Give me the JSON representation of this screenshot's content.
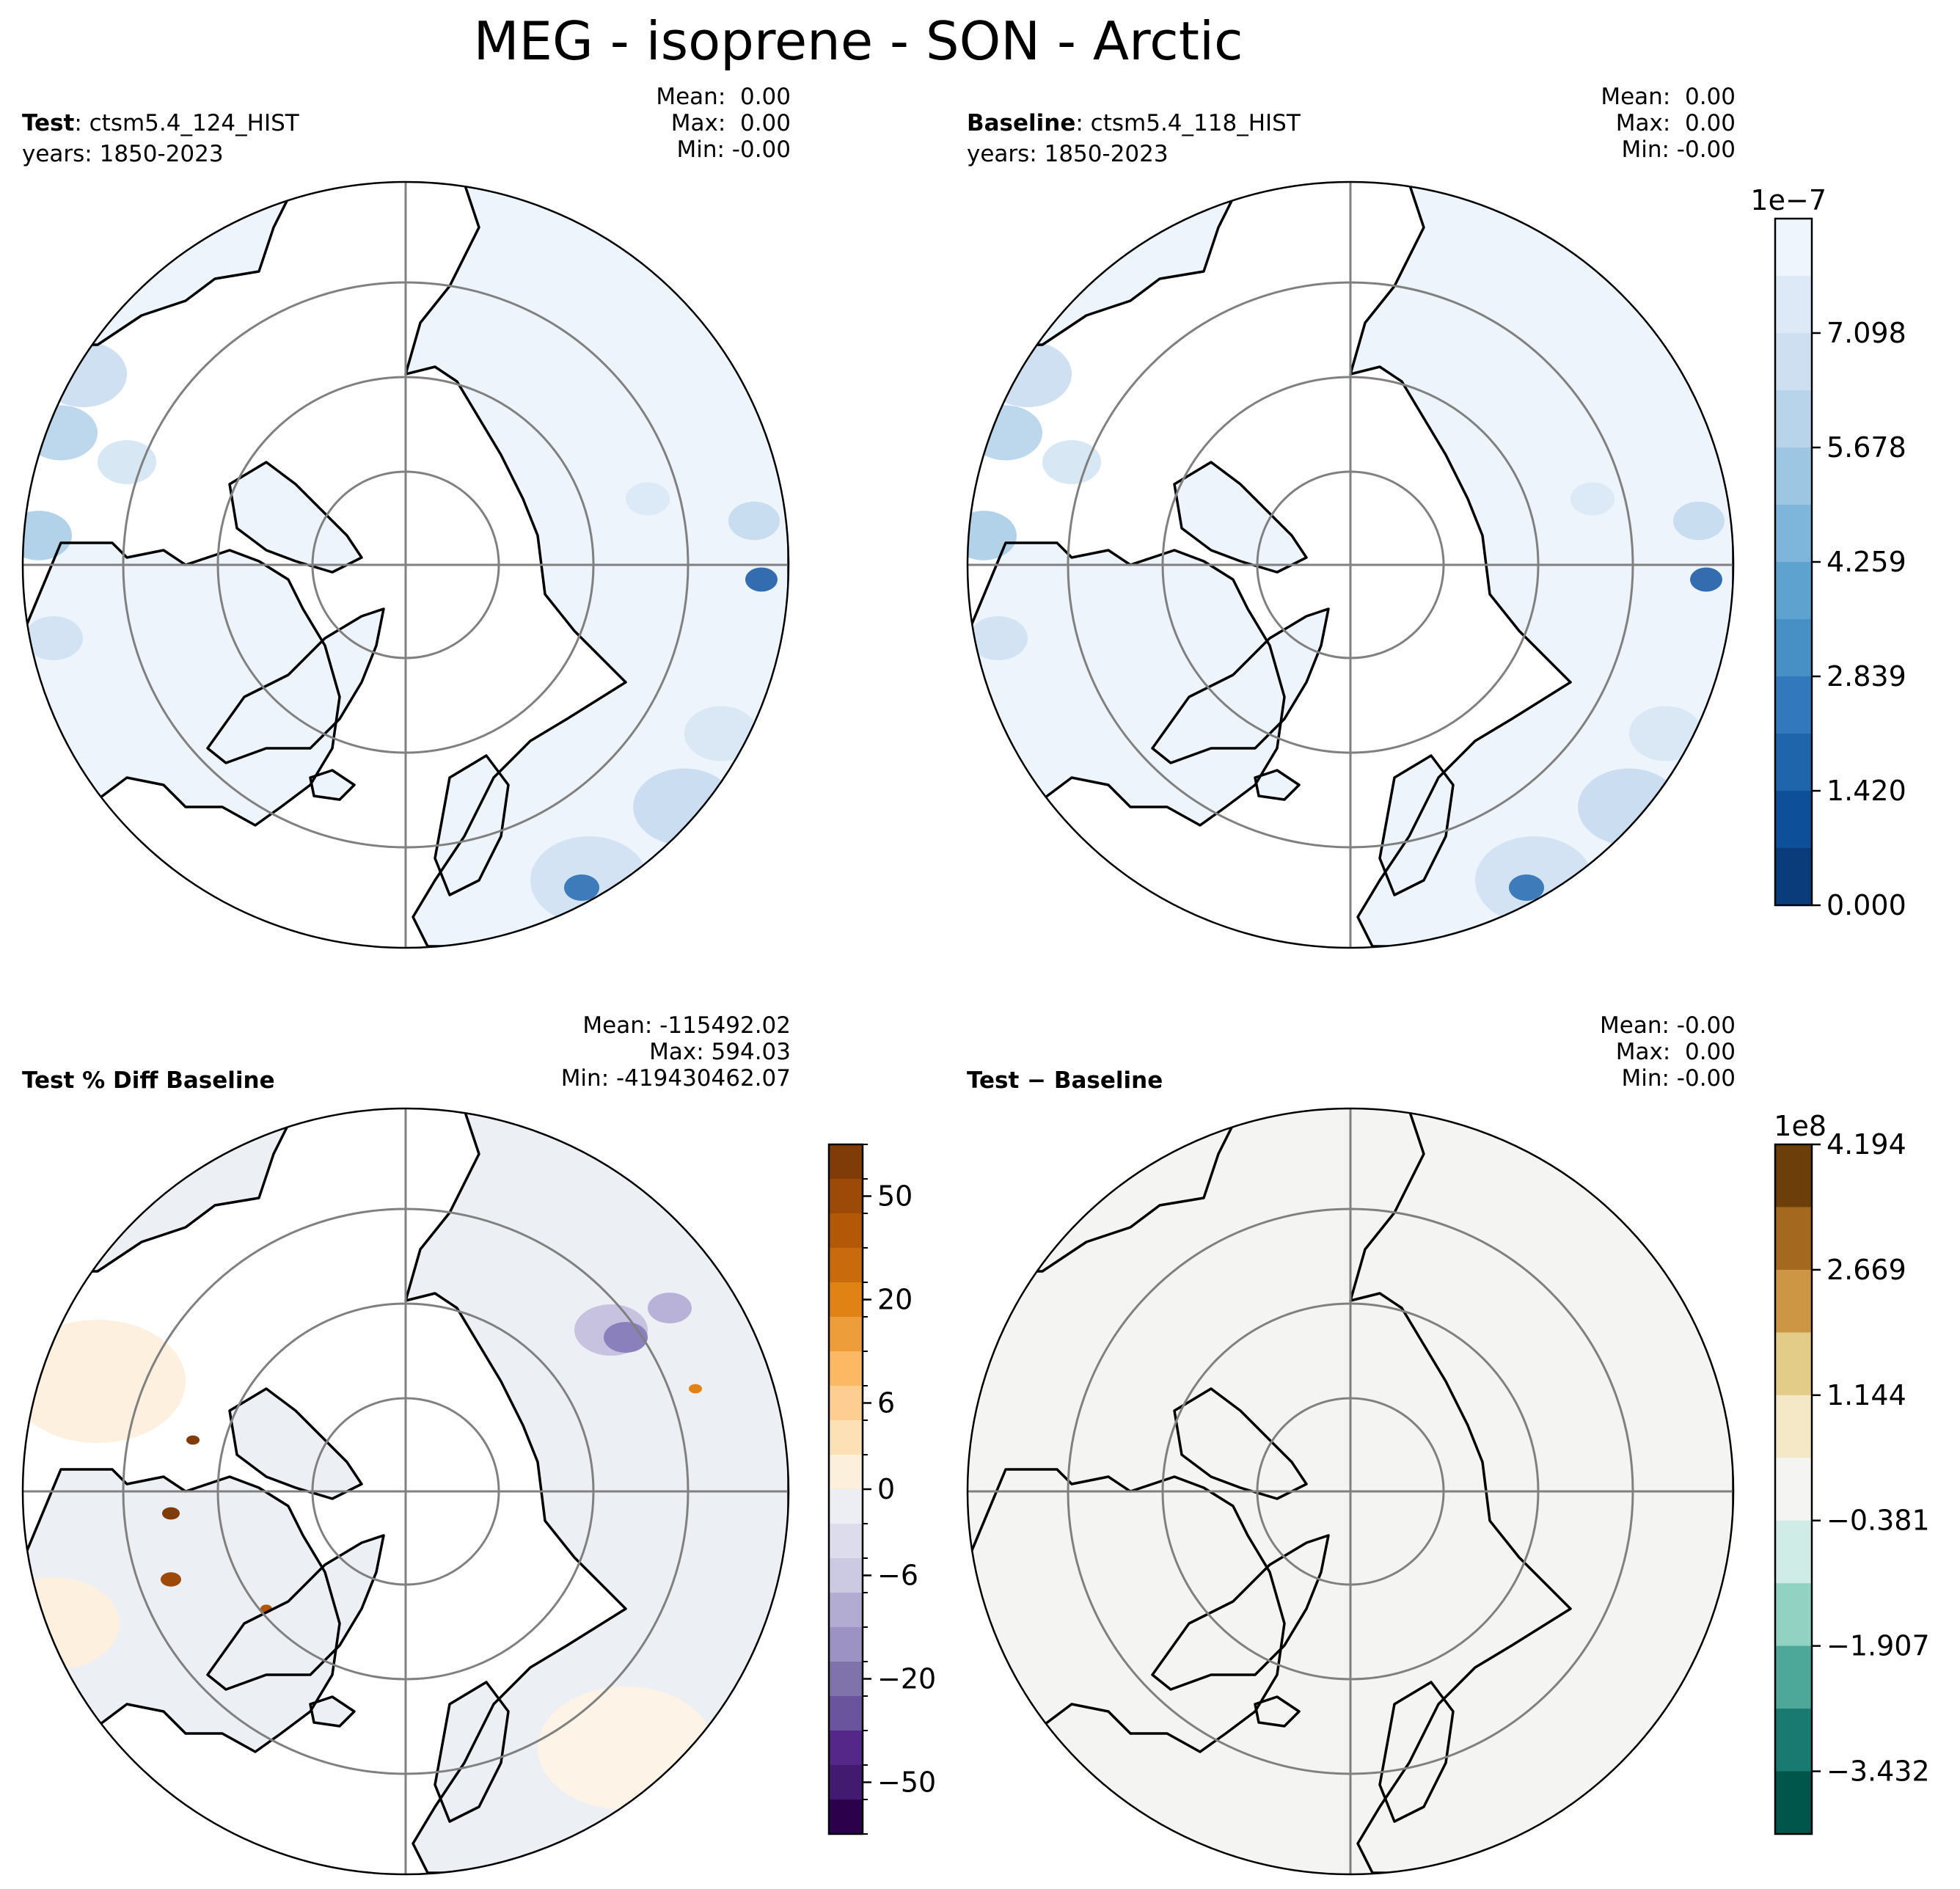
{
  "title": "MEG - isoprene - SON - Arctic",
  "panels": [
    {
      "id": "test",
      "label_bold": "Test",
      "label_rest": ": ctsm5.4_124_HIST",
      "years": "years: 1850-2023",
      "stats": {
        "mean": "Mean:  0.00",
        "max": "Max:  0.00",
        "min": "Min: -0.00"
      }
    },
    {
      "id": "baseline",
      "label_bold": "Baseline",
      "label_rest": ": ctsm5.4_118_HIST",
      "years": "years: 1850-2023",
      "stats": {
        "mean": "Mean:  0.00",
        "max": "Max:  0.00",
        "min": "Min: -0.00"
      }
    },
    {
      "id": "pctdiff",
      "label_bold": "Test % Diff Baseline",
      "label_rest": "",
      "years": "",
      "stats": {
        "mean": "Mean: -115492.02",
        "max": "Max: 594.03",
        "min": "Min: -419430462.07"
      }
    },
    {
      "id": "diff",
      "label_bold": "Test",
      "label_rest": " − Baseline",
      "years": "",
      "stats": {
        "mean": "Mean: -0.00",
        "max": "Max:  0.00",
        "min": "Min: -0.00"
      }
    }
  ],
  "colorbars": {
    "abs": {
      "exponent": "1e−7",
      "ticks": [
        "0.000",
        "1.420",
        "2.839",
        "4.259",
        "5.678",
        "7.098"
      ],
      "colors": [
        "#eef5fc",
        "#dde9f6",
        "#cddff1",
        "#b8d4ea",
        "#9cc6e2",
        "#7db6da",
        "#5ea2d0",
        "#4690c6",
        "#3179bc",
        "#1e65ac",
        "#0d5099",
        "#0a3b7a"
      ]
    },
    "pct": {
      "ticks": [
        "50",
        "20",
        "6",
        "0",
        "−6",
        "−20",
        "−50"
      ],
      "colors": [
        "#7f3b08",
        "#9d4a08",
        "#b35806",
        "#c96a0c",
        "#e08214",
        "#ed9d3a",
        "#fdb863",
        "#fdcd92",
        "#fee0b6",
        "#fcefdc",
        "#eceef4",
        "#dcdcec",
        "#ccc9e2",
        "#b2abd2",
        "#9c92c4",
        "#8073ac",
        "#6a549d",
        "#542788",
        "#421a70",
        "#2d004b"
      ]
    },
    "diff": {
      "exponent": "1e8",
      "ticks": [
        "4.194",
        "2.669",
        "1.144",
        "−0.381",
        "−1.907",
        "−3.432"
      ],
      "colors": [
        "#6b3e0a",
        "#a5681f",
        "#cc9644",
        "#e3cc88",
        "#f5e8c6",
        "#f4f4f2",
        "#d0ece6",
        "#92d2c3",
        "#4ea89a",
        "#187a70",
        "#01564c"
      ]
    }
  },
  "map_fills": {
    "abs": "#edf4fc",
    "pct": "#eceff3",
    "diff": "#f4f4f2"
  }
}
